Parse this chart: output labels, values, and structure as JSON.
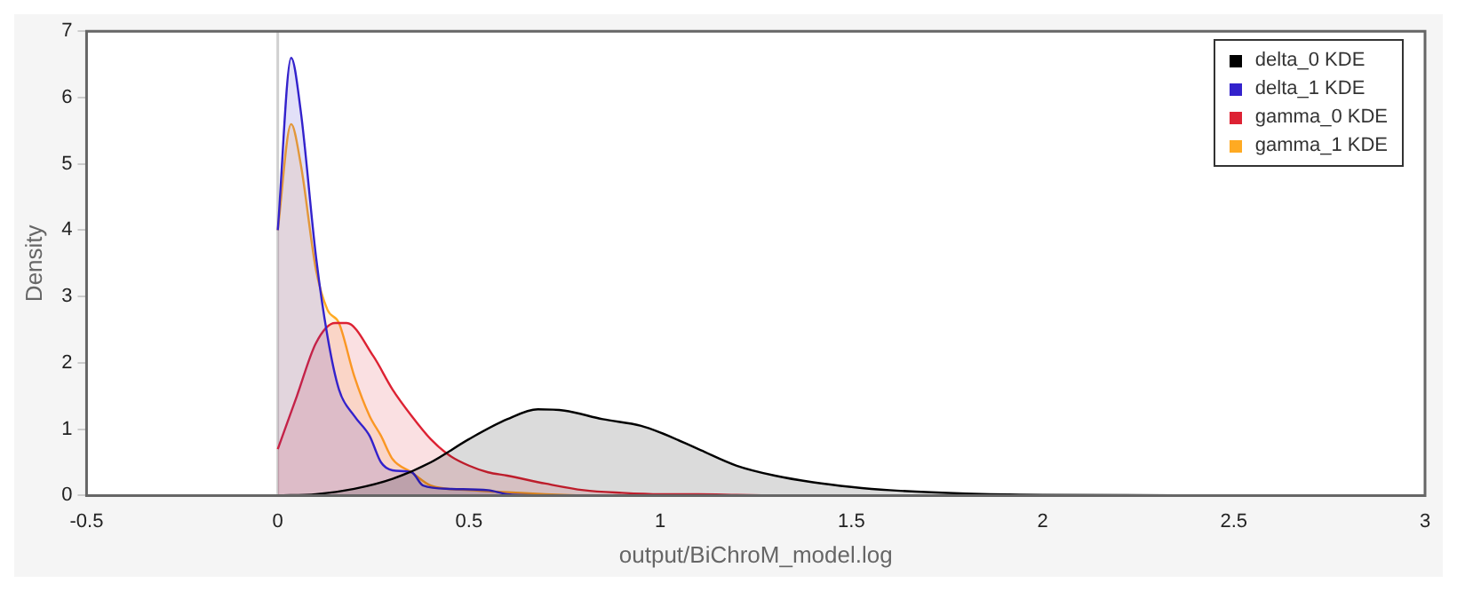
{
  "chart_data": {
    "type": "area",
    "xlabel": "output/BiChroM_model.log",
    "ylabel": "Density",
    "xlim": [
      -0.5,
      3
    ],
    "xticks": [
      -0.5,
      0,
      0.5,
      1,
      1.5,
      2,
      2.5,
      3
    ],
    "ylim": [
      0,
      7
    ],
    "yticks": [
      0,
      1,
      2,
      3,
      4,
      5,
      6,
      7
    ],
    "grid": false,
    "legend": "top right",
    "marker": "none",
    "line_style": "solid",
    "ref_lines": [
      {
        "axis": "x",
        "value": 0,
        "color": "#d0d0d0"
      }
    ],
    "series": [
      {
        "name": "delta_0 KDE",
        "color": "#000000",
        "x": [
          0,
          0.1,
          0.2,
          0.3,
          0.4,
          0.5,
          0.6,
          0.68,
          0.75,
          0.85,
          0.95,
          1.0,
          1.1,
          1.2,
          1.3,
          1.4,
          1.5,
          1.6,
          1.8,
          2.0,
          2.5
        ],
        "values": [
          0,
          0.02,
          0.1,
          0.25,
          0.5,
          0.85,
          1.15,
          1.3,
          1.28,
          1.15,
          1.05,
          0.95,
          0.7,
          0.45,
          0.3,
          0.2,
          0.13,
          0.08,
          0.03,
          0.01,
          0
        ]
      },
      {
        "name": "delta_1 KDE",
        "color": "#3322cc",
        "x": [
          0,
          0.035,
          0.06,
          0.1,
          0.13,
          0.16,
          0.2,
          0.24,
          0.27,
          0.3,
          0.35,
          0.38,
          0.45,
          0.55,
          0.6,
          0.7
        ],
        "values": [
          4.0,
          6.6,
          5.8,
          3.6,
          2.4,
          1.6,
          1.2,
          0.9,
          0.5,
          0.38,
          0.35,
          0.15,
          0.1,
          0.08,
          0.02,
          0
        ]
      },
      {
        "name": "gamma_0 KDE",
        "color": "#dd2233",
        "x": [
          0,
          0.05,
          0.1,
          0.15,
          0.18,
          0.25,
          0.3,
          0.35,
          0.4,
          0.45,
          0.5,
          0.55,
          0.6,
          0.7,
          0.8,
          0.9,
          1.0,
          1.1,
          1.2,
          1.3
        ],
        "values": [
          0.7,
          1.5,
          2.3,
          2.6,
          2.6,
          2.1,
          1.6,
          1.2,
          0.85,
          0.6,
          0.45,
          0.35,
          0.3,
          0.18,
          0.08,
          0.04,
          0.02,
          0.02,
          0.01,
          0
        ]
      },
      {
        "name": "gamma_1 KDE",
        "color": "#ffaa22",
        "x": [
          0,
          0.035,
          0.06,
          0.1,
          0.13,
          0.16,
          0.2,
          0.24,
          0.27,
          0.3,
          0.35,
          0.4,
          0.5,
          0.6,
          0.7,
          0.8
        ],
        "values": [
          4.0,
          5.6,
          5.0,
          3.4,
          2.8,
          2.6,
          1.8,
          1.2,
          0.9,
          0.55,
          0.35,
          0.15,
          0.08,
          0.05,
          0.02,
          0
        ]
      }
    ]
  }
}
